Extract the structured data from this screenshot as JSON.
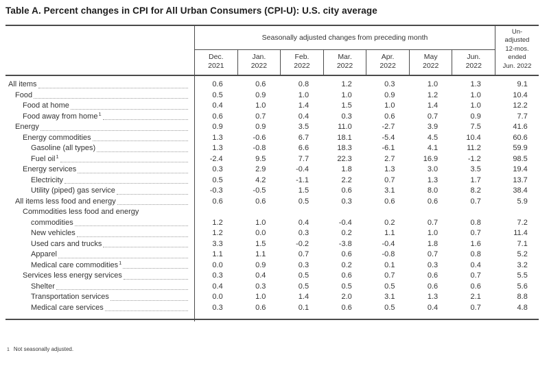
{
  "title": "Table A. Percent changes in CPI for All Urban Consumers (CPI-U): U.S. city average",
  "table": {
    "span_header": "Seasonally adjusted changes from preceding month",
    "months": [
      [
        "Dec.",
        "2021"
      ],
      [
        "Jan.",
        "2022"
      ],
      [
        "Feb.",
        "2022"
      ],
      [
        "Mar.",
        "2022"
      ],
      [
        "Apr.",
        "2022"
      ],
      [
        "May",
        "2022"
      ],
      [
        "Jun.",
        "2022"
      ]
    ],
    "unadjusted_lines": [
      "Un-",
      "adjusted",
      "12-mos.",
      "ended",
      "Jun. 2022"
    ],
    "rows": [
      {
        "label": "All items",
        "indent": 0,
        "values": [
          "0.6",
          "0.6",
          "0.8",
          "1.2",
          "0.3",
          "1.0",
          "1.3",
          "9.1"
        ]
      },
      {
        "label": "Food",
        "indent": 1,
        "values": [
          "0.5",
          "0.9",
          "1.0",
          "1.0",
          "0.9",
          "1.2",
          "1.0",
          "10.4"
        ]
      },
      {
        "label": "Food at home",
        "indent": 2,
        "values": [
          "0.4",
          "1.0",
          "1.4",
          "1.5",
          "1.0",
          "1.4",
          "1.0",
          "12.2"
        ]
      },
      {
        "label": "Food away from home",
        "footnote_marker": "1",
        "indent": 2,
        "values": [
          "0.6",
          "0.7",
          "0.4",
          "0.3",
          "0.6",
          "0.7",
          "0.9",
          "7.7"
        ]
      },
      {
        "label": "Energy",
        "indent": 1,
        "values": [
          "0.9",
          "0.9",
          "3.5",
          "11.0",
          "-2.7",
          "3.9",
          "7.5",
          "41.6"
        ]
      },
      {
        "label": "Energy commodities",
        "indent": 2,
        "values": [
          "1.3",
          "-0.6",
          "6.7",
          "18.1",
          "-5.4",
          "4.5",
          "10.4",
          "60.6"
        ]
      },
      {
        "label": "Gasoline (all types)",
        "indent": 3,
        "values": [
          "1.3",
          "-0.8",
          "6.6",
          "18.3",
          "-6.1",
          "4.1",
          "11.2",
          "59.9"
        ]
      },
      {
        "label": "Fuel oil",
        "footnote_marker": "1",
        "indent": 3,
        "values": [
          "-2.4",
          "9.5",
          "7.7",
          "22.3",
          "2.7",
          "16.9",
          "-1.2",
          "98.5"
        ]
      },
      {
        "label": "Energy services",
        "indent": 2,
        "values": [
          "0.3",
          "2.9",
          "-0.4",
          "1.8",
          "1.3",
          "3.0",
          "3.5",
          "19.4"
        ]
      },
      {
        "label": "Electricity",
        "indent": 3,
        "values": [
          "0.5",
          "4.2",
          "-1.1",
          "2.2",
          "0.7",
          "1.3",
          "1.7",
          "13.7"
        ]
      },
      {
        "label": "Utility (piped) gas service",
        "indent": 3,
        "values": [
          "-0.3",
          "-0.5",
          "1.5",
          "0.6",
          "3.1",
          "8.0",
          "8.2",
          "38.4"
        ]
      },
      {
        "label": "All items less food and energy",
        "indent": 1,
        "values": [
          "0.6",
          "0.6",
          "0.5",
          "0.3",
          "0.6",
          "0.6",
          "0.7",
          "5.9"
        ]
      },
      {
        "label_top": "Commodities less food and energy",
        "label": "commodities",
        "indent": 2,
        "values": [
          "1.2",
          "1.0",
          "0.4",
          "-0.4",
          "0.2",
          "0.7",
          "0.8",
          "7.2"
        ]
      },
      {
        "label": "New vehicles",
        "indent": 3,
        "values": [
          "1.2",
          "0.0",
          "0.3",
          "0.2",
          "1.1",
          "1.0",
          "0.7",
          "11.4"
        ]
      },
      {
        "label": "Used cars and trucks",
        "indent": 3,
        "values": [
          "3.3",
          "1.5",
          "-0.2",
          "-3.8",
          "-0.4",
          "1.8",
          "1.6",
          "7.1"
        ]
      },
      {
        "label": "Apparel",
        "indent": 3,
        "values": [
          "1.1",
          "1.1",
          "0.7",
          "0.6",
          "-0.8",
          "0.7",
          "0.8",
          "5.2"
        ]
      },
      {
        "label": "Medical care commodities",
        "footnote_marker": "1",
        "indent": 3,
        "values": [
          "0.0",
          "0.9",
          "0.3",
          "0.2",
          "0.1",
          "0.3",
          "0.4",
          "3.2"
        ]
      },
      {
        "label": "Services less energy services",
        "indent": 2,
        "values": [
          "0.3",
          "0.4",
          "0.5",
          "0.6",
          "0.7",
          "0.6",
          "0.7",
          "5.5"
        ]
      },
      {
        "label": "Shelter",
        "indent": 3,
        "values": [
          "0.4",
          "0.3",
          "0.5",
          "0.5",
          "0.5",
          "0.6",
          "0.6",
          "5.6"
        ]
      },
      {
        "label": "Transportation services",
        "indent": 3,
        "values": [
          "0.0",
          "1.0",
          "1.4",
          "2.0",
          "3.1",
          "1.3",
          "2.1",
          "8.8"
        ]
      },
      {
        "label": "Medical care services",
        "indent": 3,
        "values": [
          "0.3",
          "0.6",
          "0.1",
          "0.6",
          "0.5",
          "0.4",
          "0.7",
          "4.8"
        ]
      }
    ]
  },
  "footnote": {
    "marker": "1",
    "text": "Not seasonally adjusted."
  }
}
